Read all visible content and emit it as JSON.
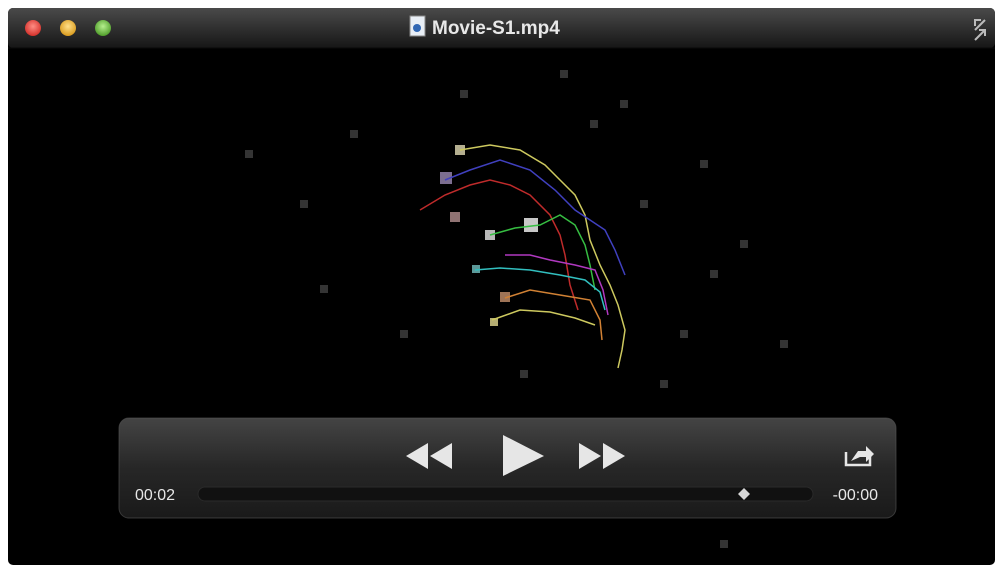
{
  "window": {
    "title": "Movie-S1.mp4"
  },
  "controls": {
    "elapsed": "00:02",
    "remaining": "-00:00"
  }
}
